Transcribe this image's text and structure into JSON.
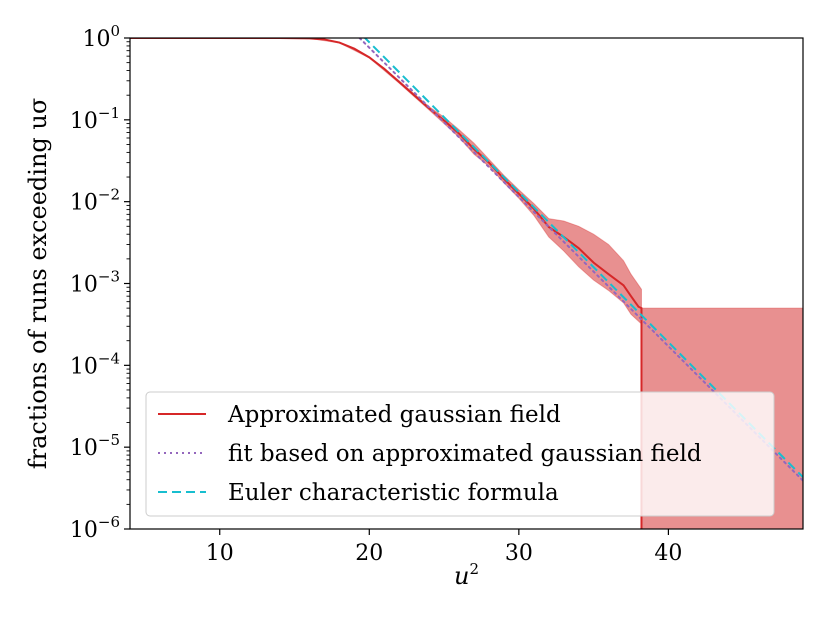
{
  "chart_data": {
    "type": "line",
    "xlabel": "u²",
    "ylabel": "fractions of runs exceeding uσ",
    "xlim": [
      4,
      49
    ],
    "ylim": [
      1e-06,
      1
    ],
    "yscale": "log",
    "xticks": [
      10,
      20,
      30,
      40
    ],
    "yticks": [
      {
        "value": 1,
        "exp": "0"
      },
      {
        "value": 0.1,
        "exp": "−1"
      },
      {
        "value": 0.01,
        "exp": "−2"
      },
      {
        "value": 0.001,
        "exp": "−3"
      },
      {
        "value": 0.0001,
        "exp": "−4"
      },
      {
        "value": 1e-05,
        "exp": "−5"
      },
      {
        "value": 1e-06,
        "exp": "−6"
      }
    ],
    "ytick_base": "10",
    "grid": false,
    "legend_position": "lower-left",
    "colors": {
      "approx": "#d62728",
      "band": "#e78a8a",
      "fit": "#9467bd",
      "euler": "#17becf"
    },
    "series": [
      {
        "name": "Approximated gaussian field",
        "style": "solid",
        "x": [
          4,
          14,
          16,
          17,
          18,
          19,
          20,
          21,
          22,
          23,
          24,
          25,
          26,
          27,
          28,
          29,
          30,
          31,
          32,
          33,
          34,
          35,
          36,
          37,
          37.5,
          38,
          38.2,
          38.2
        ],
        "y": [
          1,
          1,
          0.99,
          0.96,
          0.88,
          0.74,
          0.58,
          0.42,
          0.29,
          0.2,
          0.138,
          0.098,
          0.068,
          0.044,
          0.03,
          0.019,
          0.0125,
          0.0082,
          0.0049,
          0.0037,
          0.0027,
          0.0018,
          0.0013,
          0.00095,
          0.0007,
          0.00052,
          0.0005,
          1e-06
        ]
      },
      {
        "name": "fit based on approximated gaussian field",
        "style": "dotted",
        "x": [
          19.35,
          49
        ],
        "y": [
          1,
          3.9e-06
        ]
      },
      {
        "name": "Euler characteristic formula",
        "style": "dashed",
        "x": [
          19.6,
          49
        ],
        "y": [
          1.05,
          4.3e-06
        ]
      }
    ],
    "band": {
      "x": [
        4,
        14,
        16,
        18,
        20,
        22,
        24,
        25,
        26,
        27,
        28,
        29,
        30,
        31,
        32,
        33,
        34,
        35,
        36,
        37,
        37.5,
        38.2,
        38.2,
        49
      ],
      "upper": [
        1,
        1,
        0.99,
        0.89,
        0.59,
        0.3,
        0.145,
        0.108,
        0.076,
        0.052,
        0.033,
        0.021,
        0.014,
        0.0095,
        0.0062,
        0.0058,
        0.005,
        0.004,
        0.003,
        0.0019,
        0.0013,
        0.00085,
        0.0005,
        0.0005
      ],
      "lower": [
        1,
        1,
        0.99,
        0.87,
        0.57,
        0.28,
        0.132,
        0.09,
        0.061,
        0.038,
        0.027,
        0.017,
        0.011,
        0.0068,
        0.0037,
        0.0025,
        0.0016,
        0.0011,
        0.00082,
        0.00058,
        0.00042,
        0.00032,
        1e-06,
        1e-06
      ]
    }
  }
}
